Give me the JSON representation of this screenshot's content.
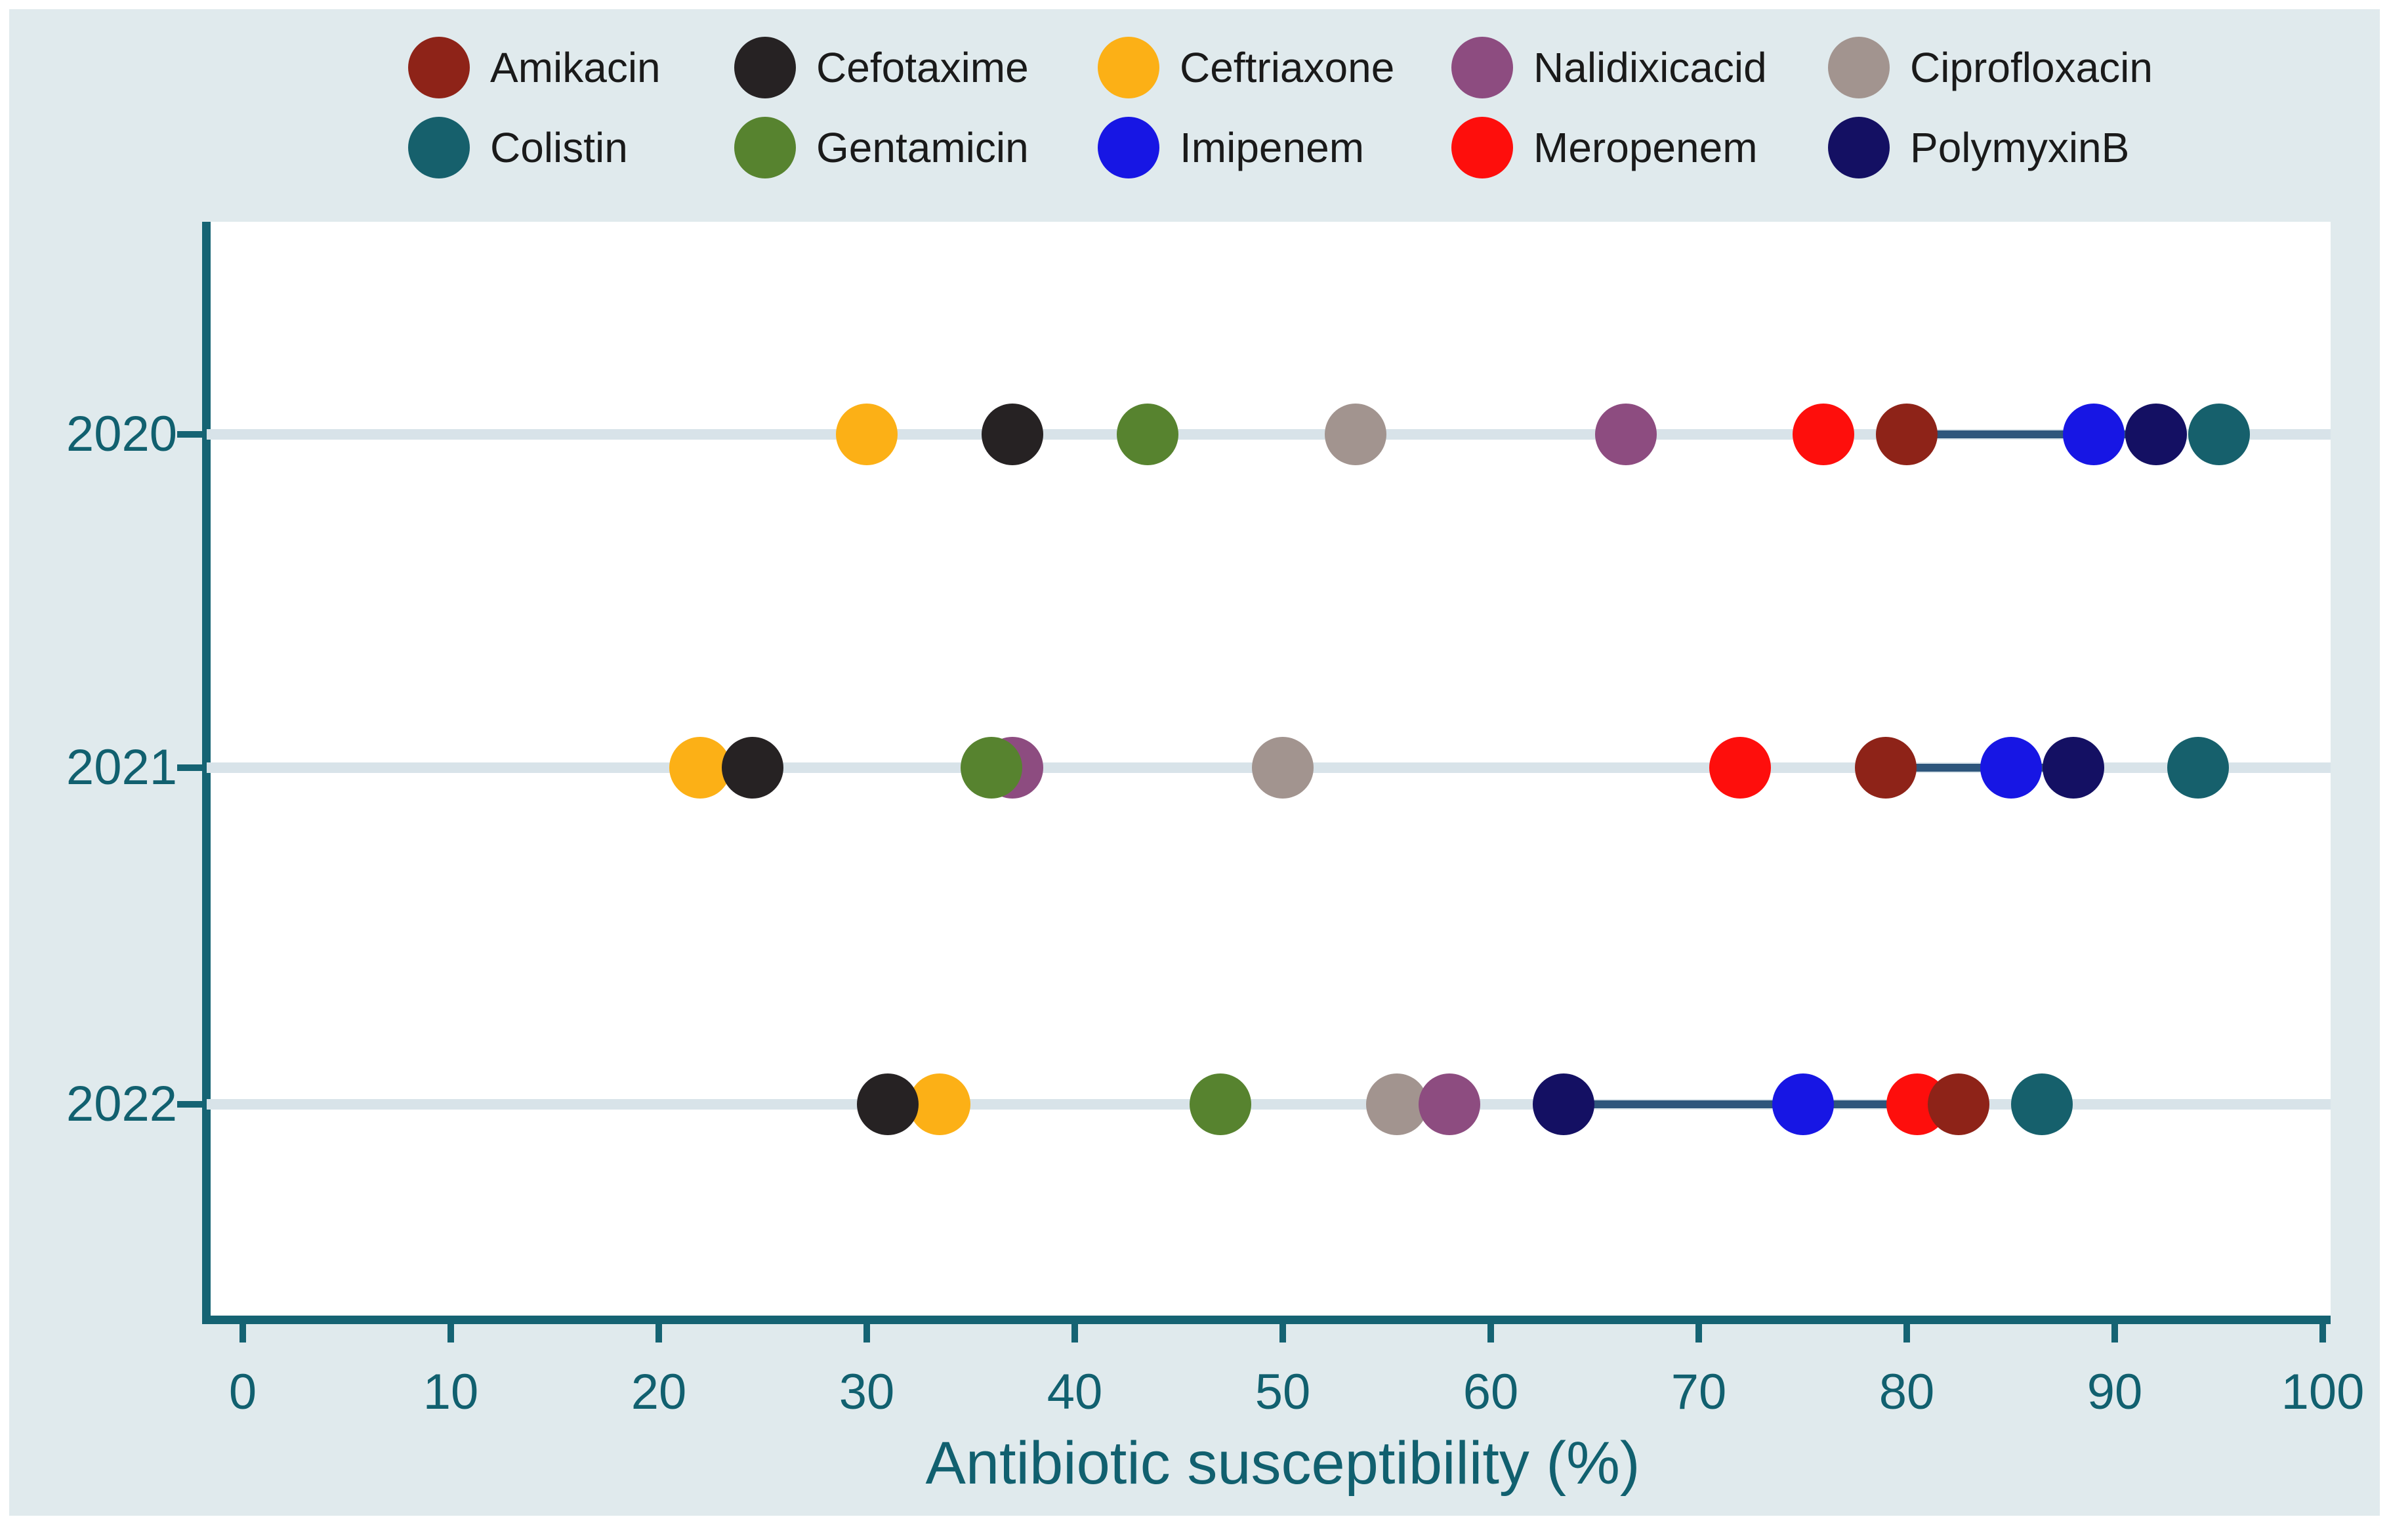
{
  "figure": {
    "background_color": "#FFFFFF",
    "panel_color": "#E0EAED",
    "plot_background": "#FFFFFF",
    "axis_color": "#156373",
    "axis_text_color": "#11606F",
    "row_line_color": "#D8E3E9",
    "connector_color": "#2E567C"
  },
  "legend": {
    "rows": [
      [
        "Amikacin",
        "Cefotaxime",
        "Ceftriaxone",
        "Nalidixicacid",
        "Ciprofloxacin"
      ],
      [
        "Colistin",
        "Gentamicin",
        "Imipenem",
        "Meropenem",
        "PolymyxinB"
      ]
    ]
  },
  "chart_data": {
    "type": "scatter",
    "subtype": "horizontal-dot-plot",
    "title": "",
    "xlabel": "Antibiotic susceptibility (%)",
    "ylabel": "",
    "xlim": [
      0,
      100
    ],
    "xticks": [
      0,
      10,
      20,
      30,
      40,
      50,
      60,
      70,
      80,
      90,
      100
    ],
    "categories": [
      "2020",
      "2021",
      "2022"
    ],
    "grid": "light horizontal line per category row",
    "legend_position": "top",
    "series": [
      {
        "name": "Amikacin",
        "color": "#8E2318",
        "values": [
          80,
          79,
          82.5
        ]
      },
      {
        "name": "Cefotaxime",
        "color": "#262223",
        "values": [
          37,
          24.5,
          31
        ]
      },
      {
        "name": "Ceftriaxone",
        "color": "#FCB016",
        "values": [
          30,
          22,
          33.5
        ]
      },
      {
        "name": "Nalidixicacid",
        "color": "#8D4C80",
        "values": [
          66.5,
          37,
          58
        ]
      },
      {
        "name": "Ciprofloxacin",
        "color": "#A2948F",
        "values": [
          53.5,
          50,
          55.5
        ]
      },
      {
        "name": "Colistin",
        "color": "#16606C",
        "values": [
          95,
          94,
          86.5
        ]
      },
      {
        "name": "Gentamicin",
        "color": "#57832F",
        "values": [
          43.5,
          36,
          47
        ]
      },
      {
        "name": "Imipenem",
        "color": "#1716E4",
        "values": [
          89,
          85,
          75
        ]
      },
      {
        "name": "Meropenem",
        "color": "#FE0E0C",
        "values": [
          76,
          72,
          80.5
        ]
      },
      {
        "name": "PolymyxinB",
        "color": "#141063",
        "values": [
          92,
          88,
          63.5
        ]
      }
    ],
    "connectors": [
      {
        "category": "2020",
        "from_series": "Amikacin",
        "to_series": "PolymyxinB"
      },
      {
        "category": "2021",
        "from_series": "Amikacin",
        "to_series": "PolymyxinB"
      },
      {
        "category": "2022",
        "from_series": "PolymyxinB",
        "to_series": "Amikacin"
      }
    ]
  }
}
